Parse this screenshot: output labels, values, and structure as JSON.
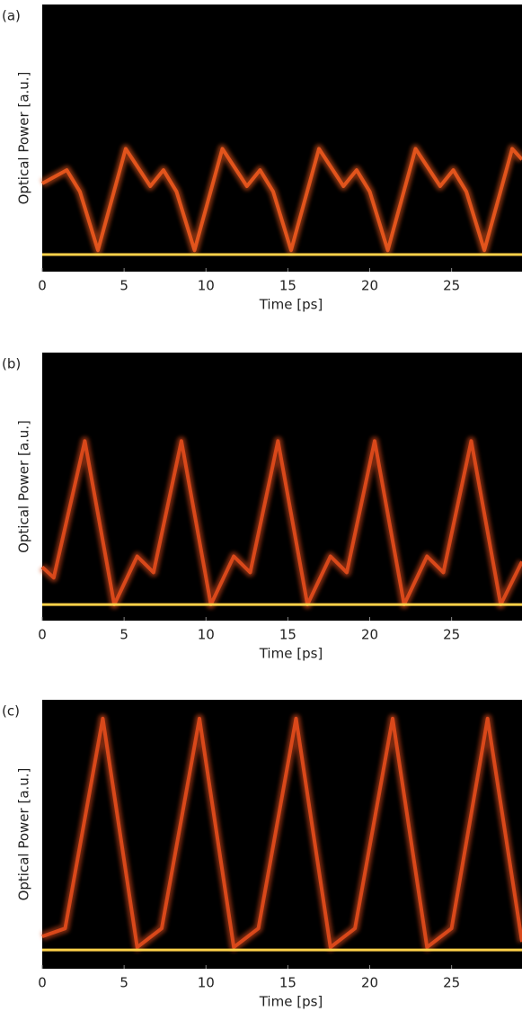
{
  "chart_data": [
    {
      "type": "line",
      "label": "(a)",
      "x_label": "Time [ps]",
      "y_label": "Optical Power [a.u.]",
      "xlim": [
        0,
        29.3
      ],
      "xticks": [
        0,
        5,
        10,
        15,
        20,
        25
      ],
      "ylim": [
        0,
        1
      ],
      "background": "#000000",
      "series": [
        {
          "color": "#e2541c",
          "x": [
            0,
            1.5,
            2.3,
            3.4,
            5.1,
            6.6,
            7.4,
            8.2,
            9.3,
            11.0,
            12.5,
            13.3,
            14.1,
            15.2,
            16.9,
            18.4,
            19.2,
            20.0,
            21.1,
            22.8,
            24.3,
            25.1,
            25.9,
            27.0,
            28.7,
            29.3
          ],
          "values": [
            0.33,
            0.38,
            0.3,
            0.08,
            0.46,
            0.32,
            0.38,
            0.3,
            0.08,
            0.46,
            0.32,
            0.38,
            0.3,
            0.08,
            0.46,
            0.32,
            0.38,
            0.3,
            0.08,
            0.46,
            0.32,
            0.38,
            0.3,
            0.08,
            0.46,
            0.42
          ]
        },
        {
          "color": "#ffd24a",
          "x": [
            0,
            29.3
          ],
          "values": [
            0.064,
            0.064
          ]
        }
      ]
    },
    {
      "type": "line",
      "label": "(b)",
      "x_label": "Time [ps]",
      "y_label": "Optical Power [a.u.]",
      "xlim": [
        0,
        29.3
      ],
      "xticks": [
        0,
        5,
        10,
        15,
        20,
        25
      ],
      "ylim": [
        0,
        1
      ],
      "background": "#000000",
      "series": [
        {
          "color": "#d9481a",
          "x": [
            0,
            0.7,
            2.6,
            4.4,
            5.8,
            6.8,
            8.5,
            10.3,
            11.7,
            12.7,
            14.4,
            16.2,
            17.6,
            18.6,
            20.3,
            22.1,
            23.5,
            24.5,
            26.2,
            28.0,
            29.3
          ],
          "values": [
            0.2,
            0.16,
            0.67,
            0.06,
            0.24,
            0.18,
            0.67,
            0.06,
            0.24,
            0.18,
            0.67,
            0.06,
            0.24,
            0.18,
            0.67,
            0.06,
            0.24,
            0.18,
            0.67,
            0.06,
            0.22
          ]
        },
        {
          "color": "#ffd24a",
          "x": [
            0,
            29.3
          ],
          "values": [
            0.06,
            0.06
          ]
        }
      ]
    },
    {
      "type": "line",
      "label": "(c)",
      "x_label": "Time [ps]",
      "y_label": "Optical Power [a.u.]",
      "xlim": [
        0,
        29.3
      ],
      "xticks": [
        0,
        5,
        10,
        15,
        20,
        25
      ],
      "ylim": [
        0,
        1
      ],
      "background": "#000000",
      "series": [
        {
          "color": "#d9481a",
          "x": [
            0,
            1.4,
            3.7,
            5.8,
            7.3,
            9.6,
            11.7,
            13.2,
            15.5,
            17.6,
            19.1,
            21.4,
            23.5,
            25.0,
            27.2,
            29.3
          ],
          "values": [
            0.12,
            0.15,
            0.93,
            0.08,
            0.15,
            0.93,
            0.08,
            0.15,
            0.93,
            0.08,
            0.15,
            0.93,
            0.08,
            0.15,
            0.93,
            0.1
          ]
        },
        {
          "color": "#ffd24a",
          "x": [
            0,
            29.3
          ],
          "values": [
            0.07,
            0.07
          ]
        }
      ]
    }
  ]
}
